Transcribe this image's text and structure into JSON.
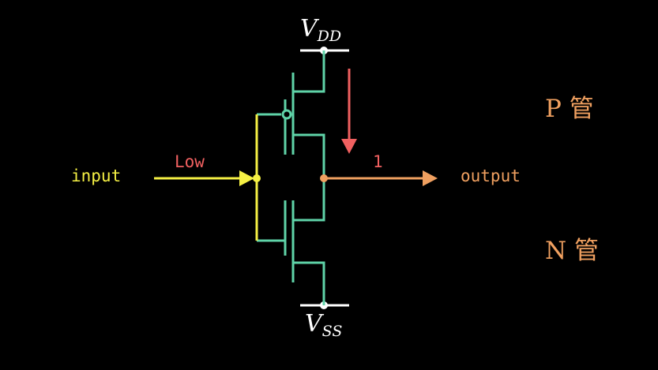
{
  "labels": {
    "vdd_main": "V",
    "vdd_sub": "DD",
    "vss_main": "V",
    "vss_sub": "SS",
    "input": "input",
    "input_level": "Low",
    "output": "output",
    "output_value": "1",
    "p_tube": "P 管",
    "n_tube": "N 管"
  },
  "colors": {
    "background": "#000000",
    "transistor": "#5fd3a8",
    "rail": "#ffffff",
    "input_wire": "#f5f044",
    "output_wire": "#f0a060",
    "current_arrow": "#f06060",
    "input_level_text": "#f06060",
    "tube_label": "#f0a060"
  }
}
